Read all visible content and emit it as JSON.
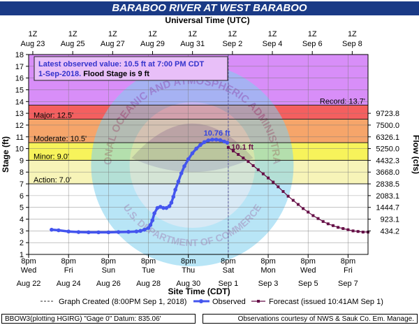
{
  "title": "BARABOO RIVER AT WEST BARABOO",
  "colors": {
    "title_bg": "#1a3a86",
    "record_band": "#d88ef8",
    "major_band": "#f45f5f",
    "moderate_band": "#f6a56a",
    "minor_band": "#f7f35b",
    "observed": "#4455ee",
    "forecast": "#660f47"
  },
  "chart_data": {
    "type": "line",
    "top_axis": {
      "label": "Universal Time (UTC)",
      "ticks": [
        {
          "line1": "1Z",
          "line2": "Aug 23"
        },
        {
          "line1": "1Z",
          "line2": "Aug 25"
        },
        {
          "line1": "1Z",
          "line2": "Aug 27"
        },
        {
          "line1": "1Z",
          "line2": "Aug 29"
        },
        {
          "line1": "1Z",
          "line2": "Aug 31"
        },
        {
          "line1": "1Z",
          "line2": "Sep 2"
        },
        {
          "line1": "1Z",
          "line2": "Sep 4"
        },
        {
          "line1": "1Z",
          "line2": "Sep 6"
        },
        {
          "line1": "1Z",
          "line2": "Sep 8"
        }
      ]
    },
    "bottom_axis": {
      "label": "Site Time (CDT)",
      "ticks": [
        {
          "time": "8pm",
          "day": "Wed",
          "date": "Aug 22"
        },
        {
          "time": "8pm",
          "day": "Fri",
          "date": "Aug 24"
        },
        {
          "time": "8pm",
          "day": "Sun",
          "date": "Aug 26"
        },
        {
          "time": "8pm",
          "day": "Tue",
          "date": "Aug 28"
        },
        {
          "time": "8pm",
          "day": "Thu",
          "date": "Aug 30"
        },
        {
          "time": "8pm",
          "day": "Sat",
          "date": "Sep 1"
        },
        {
          "time": "8pm",
          "day": "Mon",
          "date": "Sep 3"
        },
        {
          "time": "8pm",
          "day": "Wed",
          "date": "Sep 5"
        },
        {
          "time": "8pm",
          "day": "Fri",
          "date": "Sep 7"
        }
      ]
    },
    "x_range_days": [
      0,
      17
    ],
    "ylabel_left": "Stage (ft)",
    "ylabel_right": "Flow (cfs)",
    "ylim": [
      1,
      18
    ],
    "y_ticks": [
      1,
      2,
      3,
      4,
      5,
      6,
      7,
      8,
      9,
      10,
      11,
      12,
      13,
      14,
      15,
      16,
      17,
      18
    ],
    "flow_ticks": [
      {
        "stage": 3,
        "label": "434.2"
      },
      {
        "stage": 4,
        "label": "923.1"
      },
      {
        "stage": 5,
        "label": "1444.7"
      },
      {
        "stage": 6,
        "label": "2083.1"
      },
      {
        "stage": 7,
        "label": "2838.5"
      },
      {
        "stage": 8,
        "label": "3668.0"
      },
      {
        "stage": 9,
        "label": "4432.3"
      },
      {
        "stage": 10,
        "label": "5250.0"
      },
      {
        "stage": 11,
        "label": "6326.1"
      },
      {
        "stage": 12,
        "label": "7500.0"
      },
      {
        "stage": 13,
        "label": "9723.8"
      }
    ],
    "flood_categories": [
      {
        "name": "Action",
        "label": "Action: 7.0'",
        "stage": 7.0
      },
      {
        "name": "Minor",
        "label": "Minor: 9.0'",
        "stage": 9.0
      },
      {
        "name": "Moderate",
        "label": "Moderate: 10.5'",
        "stage": 10.5
      },
      {
        "name": "Major",
        "label": "Major: 12.5'",
        "stage": 12.5
      },
      {
        "name": "Record",
        "label": "Record: 13.7'",
        "stage": 13.7
      }
    ],
    "info_box": {
      "line1": "Latest observed value: 10.5 ft at 7:00 PM CDT",
      "line2_date": "1-Sep-2018.",
      "line2_flood": "Flood Stage is 9 ft"
    },
    "annotations": {
      "peak_observed": {
        "label": "10.76 ft",
        "day": 9.5,
        "value": 10.76
      },
      "peak_forecast": {
        "label": "10.1 ft",
        "day": 10.05,
        "value": 10.1
      }
    },
    "graph_created_day": 10.0,
    "series": [
      {
        "name": "Observed",
        "x_days": [
          1.15,
          1.5,
          2.0,
          2.5,
          3.0,
          3.5,
          4.0,
          4.5,
          5.0,
          5.4,
          5.6,
          5.8,
          6.0,
          6.1,
          6.2,
          6.3,
          6.45,
          6.6,
          6.75,
          6.9,
          7.05,
          7.15,
          7.25,
          7.35,
          7.5,
          7.65,
          7.8,
          8.0,
          8.2,
          8.4,
          8.6,
          8.8,
          9.0,
          9.2,
          9.4,
          9.6,
          9.8,
          9.95
        ],
        "values": [
          3.1,
          3.05,
          2.95,
          2.9,
          2.88,
          2.88,
          2.88,
          2.9,
          2.92,
          2.95,
          3.0,
          3.1,
          3.25,
          3.5,
          3.9,
          4.5,
          4.95,
          5.05,
          4.95,
          4.95,
          5.1,
          5.4,
          5.9,
          6.5,
          7.2,
          7.9,
          8.5,
          9.1,
          9.6,
          10.0,
          10.3,
          10.55,
          10.7,
          10.76,
          10.76,
          10.72,
          10.6,
          10.5
        ]
      },
      {
        "name": "Forecast",
        "issued": "issued 10:41AM Sep 1",
        "x_days": [
          10.0,
          10.25,
          10.5,
          10.75,
          11.0,
          11.25,
          11.5,
          11.75,
          12.0,
          12.25,
          12.5,
          12.75,
          13.0,
          13.25,
          13.5,
          13.75,
          14.0,
          14.25,
          14.5,
          14.75,
          15.0,
          15.25,
          15.5,
          15.75,
          16.0,
          16.25,
          16.5,
          16.75,
          17.0
        ],
        "values": [
          10.1,
          9.8,
          9.5,
          9.2,
          8.9,
          8.55,
          8.2,
          7.85,
          7.5,
          7.15,
          6.75,
          6.35,
          5.95,
          5.6,
          5.25,
          4.9,
          4.6,
          4.3,
          4.05,
          3.8,
          3.6,
          3.45,
          3.3,
          3.2,
          3.1,
          3.0,
          2.95,
          2.9,
          2.9
        ]
      }
    ],
    "legend": {
      "created": "Graph Created (8:00PM Sep 1, 2018)",
      "observed": "Observed",
      "forecast": "Forecast (issued 10:41AM Sep 1)"
    },
    "grid": true
  },
  "footer": {
    "left": "BBOW3(plotting HGIRG) \"Gage 0\" Datum: 835.06'",
    "right": "Observations courtesy of NWS & Sauk Co. Em. Manage."
  },
  "watermark": {
    "ring_text": "NATIONAL OCEANIC AND ATMOSPHERIC ADMINISTRATION",
    "lower_text": "U.S. DEPARTMENT OF COMMERCE",
    "center_text": "NOAA"
  }
}
